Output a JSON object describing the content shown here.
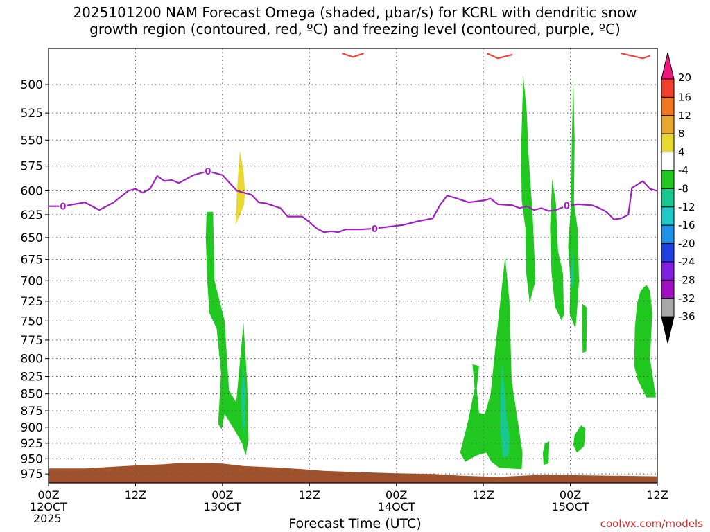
{
  "chart_data": {
    "type": "heatmap",
    "title_lines": [
      "2025101200 NAM Forecast Omega (shaded, μbar/s) for KCRL with dendritic snow",
      "growth region (contoured, red, ºC) and freezing level (contoured, purple, ºC)"
    ],
    "xlabel": "Forecast Time (UTC)",
    "x_ticks": [
      {
        "hour": 0,
        "lines": [
          "00Z",
          "12OCT",
          "2025"
        ]
      },
      {
        "hour": 12,
        "lines": [
          "12Z"
        ]
      },
      {
        "hour": 24,
        "lines": [
          "00Z",
          "13OCT"
        ]
      },
      {
        "hour": 36,
        "lines": [
          "12Z"
        ]
      },
      {
        "hour": 48,
        "lines": [
          "00Z",
          "14OCT"
        ]
      },
      {
        "hour": 60,
        "lines": [
          "12Z"
        ]
      },
      {
        "hour": 72,
        "lines": [
          "00Z",
          "15OCT"
        ]
      },
      {
        "hour": 84,
        "lines": [
          "12Z"
        ]
      }
    ],
    "xlim": [
      0,
      84
    ],
    "y_ticks": [
      500,
      525,
      550,
      575,
      600,
      625,
      650,
      675,
      700,
      725,
      750,
      775,
      800,
      825,
      850,
      875,
      900,
      925,
      950,
      975
    ],
    "ylim_hpa": [
      470,
      990
    ],
    "y_scale": "log-pressure",
    "grid": true,
    "colorbar": {
      "labels": [
        "20",
        "16",
        "12",
        "8",
        "4",
        "-4",
        "-8",
        "-12",
        "-16",
        "-20",
        "-24",
        "-28",
        "-32",
        "-36"
      ],
      "colors": [
        "#f01680",
        "#f04030",
        "#f07820",
        "#e8a830",
        "#e8d830",
        "#ffffff",
        "#20c820",
        "#18c890",
        "#20c8c8",
        "#2090e8",
        "#2040e0",
        "#8020e0",
        "#a010c0",
        "#a8a8a8",
        "#000000"
      ]
    },
    "freezing_level": {
      "label": "0",
      "color": "#a020c0",
      "points": [
        [
          0,
          616
        ],
        [
          2,
          616
        ],
        [
          5,
          612
        ],
        [
          7,
          620
        ],
        [
          9,
          612
        ],
        [
          11,
          600
        ],
        [
          12,
          598
        ],
        [
          13,
          602
        ],
        [
          14,
          598
        ],
        [
          15,
          585
        ],
        [
          16,
          590
        ],
        [
          17,
          589
        ],
        [
          18,
          592
        ],
        [
          20,
          584
        ],
        [
          22,
          580
        ],
        [
          23,
          582
        ],
        [
          24,
          584
        ],
        [
          25,
          592
        ],
        [
          26,
          600
        ],
        [
          27,
          602
        ],
        [
          28,
          604
        ],
        [
          29,
          612
        ],
        [
          30,
          613
        ],
        [
          32,
          618
        ],
        [
          33,
          627
        ],
        [
          35,
          627
        ],
        [
          36,
          633
        ],
        [
          37,
          640
        ],
        [
          38,
          644
        ],
        [
          39,
          643
        ],
        [
          40,
          644
        ],
        [
          41,
          641
        ],
        [
          43,
          641
        ],
        [
          45,
          640
        ],
        [
          47,
          638
        ],
        [
          49,
          636
        ],
        [
          51,
          632
        ],
        [
          53,
          629
        ],
        [
          54,
          615
        ],
        [
          55,
          605
        ],
        [
          56,
          607
        ],
        [
          58,
          612
        ],
        [
          60,
          610
        ],
        [
          61,
          608
        ],
        [
          62,
          614
        ],
        [
          64,
          615
        ],
        [
          65,
          618
        ],
        [
          66,
          616
        ],
        [
          67,
          620
        ],
        [
          68,
          618
        ],
        [
          69,
          621
        ],
        [
          70,
          620
        ],
        [
          71,
          617
        ],
        [
          72,
          615
        ],
        [
          73,
          614
        ],
        [
          75,
          615
        ],
        [
          76,
          618
        ],
        [
          77,
          622
        ],
        [
          78,
          630
        ],
        [
          79,
          629
        ],
        [
          80,
          625
        ],
        [
          80.5,
          597
        ],
        [
          82,
          590
        ],
        [
          83,
          598
        ],
        [
          84,
          600
        ]
      ],
      "contour_labels": [
        [
          2,
          616
        ],
        [
          22,
          580
        ],
        [
          45,
          640
        ],
        [
          71.5,
          615
        ]
      ]
    },
    "dendritic_contour": {
      "color": "#f04040",
      "segments": [
        [
          [
            40.5,
            474
          ],
          [
            42,
            477
          ],
          [
            43.5,
            474
          ]
        ],
        [
          [
            60.5,
            474
          ],
          [
            62,
            478
          ],
          [
            64,
            475
          ]
        ],
        [
          [
            79,
            474
          ],
          [
            80.5,
            476
          ],
          [
            82,
            478
          ],
          [
            83,
            476
          ]
        ]
      ]
    },
    "omega_regions": [
      {
        "value": 8,
        "color": "#e8d830",
        "points": [
          [
            25.8,
            636
          ],
          [
            26.0,
            600
          ],
          [
            26.4,
            560
          ],
          [
            26.9,
            580
          ],
          [
            27.1,
            600
          ],
          [
            27.0,
            614
          ],
          [
            26.5,
            624
          ],
          [
            26.1,
            630
          ]
        ]
      },
      {
        "value": -6,
        "color": "#20c820",
        "points": [
          [
            21.8,
            622
          ],
          [
            22.7,
            622
          ],
          [
            22.9,
            700
          ],
          [
            24.3,
            750
          ],
          [
            24.9,
            845
          ],
          [
            25.9,
            862
          ],
          [
            26.9,
            752
          ],
          [
            27.4,
            832
          ],
          [
            27.6,
            920
          ],
          [
            27.2,
            945
          ],
          [
            26.7,
            925
          ],
          [
            25.7,
            905
          ],
          [
            24.3,
            880
          ],
          [
            23.9,
            903
          ],
          [
            23.4,
            895
          ],
          [
            23.8,
            820
          ],
          [
            23.2,
            760
          ],
          [
            22.2,
            740
          ],
          [
            21.9,
            700
          ],
          [
            21.7,
            650
          ]
        ]
      },
      {
        "value": -10,
        "color": "#18c890",
        "points": [
          [
            26.9,
            810
          ],
          [
            27.2,
            850
          ],
          [
            27.0,
            915
          ],
          [
            26.7,
            890
          ],
          [
            26.6,
            845
          ]
        ]
      },
      {
        "value": -6,
        "color": "#20c820",
        "points": [
          [
            58.5,
            808
          ],
          [
            59.4,
            810
          ],
          [
            59.1,
            842
          ],
          [
            59.4,
            878
          ],
          [
            60.2,
            880
          ],
          [
            61.0,
            850
          ],
          [
            61.6,
            790
          ],
          [
            62.1,
            745
          ],
          [
            63.0,
            672
          ],
          [
            63.6,
            725
          ],
          [
            63.9,
            830
          ],
          [
            65.4,
            940
          ],
          [
            65.3,
            967
          ],
          [
            62.2,
            965
          ],
          [
            61.1,
            955
          ],
          [
            60.4,
            940
          ],
          [
            59.0,
            945
          ],
          [
            57.5,
            955
          ],
          [
            56.8,
            940
          ],
          [
            57.9,
            890
          ],
          [
            58.8,
            842
          ]
        ]
      },
      {
        "value": -10,
        "color": "#18c890",
        "points": [
          [
            62.6,
            805
          ],
          [
            63.2,
            880
          ],
          [
            63.6,
            915
          ],
          [
            63.5,
            945
          ],
          [
            62.7,
            948
          ],
          [
            62.3,
            900
          ],
          [
            62.4,
            845
          ]
        ]
      },
      {
        "value": -6,
        "color": "#20c820",
        "points": [
          [
            65.5,
            492
          ],
          [
            66.0,
            525
          ],
          [
            66.2,
            560
          ],
          [
            66.8,
            625
          ],
          [
            67.2,
            700
          ],
          [
            66.4,
            727
          ],
          [
            65.9,
            690
          ],
          [
            65.8,
            640
          ],
          [
            65.3,
            610
          ],
          [
            65.2,
            560
          ]
        ]
      },
      {
        "value": -6,
        "color": "#20c820",
        "points": [
          [
            69.5,
            588
          ],
          [
            70.0,
            612
          ],
          [
            70.3,
            665
          ],
          [
            71.0,
            692
          ],
          [
            71.1,
            742
          ],
          [
            70.8,
            750
          ],
          [
            69.9,
            732
          ],
          [
            69.4,
            690
          ],
          [
            69.2,
            640
          ]
        ]
      },
      {
        "value": -6,
        "color": "#20c820",
        "points": [
          [
            72.4,
            494
          ],
          [
            72.6,
            550
          ],
          [
            72.5,
            612
          ],
          [
            73.0,
            640
          ],
          [
            73.2,
            700
          ],
          [
            72.9,
            740
          ],
          [
            72.7,
            760
          ],
          [
            71.9,
            740
          ],
          [
            72.0,
            700
          ],
          [
            71.7,
            660
          ],
          [
            72.1,
            615
          ],
          [
            72.2,
            550
          ]
        ]
      },
      {
        "value": -10,
        "color": "#18c890",
        "points": [
          [
            72.3,
            660
          ],
          [
            72.5,
            680
          ],
          [
            72.4,
            710
          ],
          [
            72.1,
            700
          ]
        ]
      },
      {
        "value": -6,
        "color": "#20c820",
        "points": [
          [
            73.6,
            728
          ],
          [
            74.3,
            733
          ],
          [
            74.2,
            790
          ],
          [
            73.7,
            792
          ]
        ]
      },
      {
        "value": -6,
        "color": "#20c820",
        "points": [
          [
            81.2,
            728
          ],
          [
            81.7,
            712
          ],
          [
            82.5,
            705
          ],
          [
            83.0,
            712
          ],
          [
            83.3,
            740
          ],
          [
            83.0,
            800
          ],
          [
            83.8,
            855
          ],
          [
            82.5,
            855
          ],
          [
            81.3,
            830
          ],
          [
            80.8,
            810
          ],
          [
            80.9,
            760
          ]
        ]
      },
      {
        "value": -6,
        "color": "#20c820",
        "points": [
          [
            68.5,
            925
          ],
          [
            69.1,
            922
          ],
          [
            69.0,
            958
          ],
          [
            68.3,
            960
          ],
          [
            68.2,
            940
          ]
        ]
      },
      {
        "value": -6,
        "color": "#20c820",
        "points": [
          [
            72.6,
            912
          ],
          [
            73.5,
            897
          ],
          [
            74.1,
            902
          ],
          [
            73.9,
            930
          ],
          [
            72.9,
            940
          ],
          [
            72.4,
            928
          ]
        ]
      }
    ],
    "surface_pressure": {
      "color": "#a0522d",
      "points": [
        [
          0,
          966
        ],
        [
          5,
          966
        ],
        [
          9,
          963
        ],
        [
          12,
          961
        ],
        [
          16,
          959
        ],
        [
          18,
          957
        ],
        [
          22,
          957
        ],
        [
          24,
          958
        ],
        [
          27,
          962
        ],
        [
          31,
          964
        ],
        [
          35,
          967
        ],
        [
          38,
          970
        ],
        [
          43,
          972
        ],
        [
          48,
          974
        ],
        [
          53,
          975
        ],
        [
          57,
          978
        ],
        [
          62,
          980
        ],
        [
          67,
          977
        ],
        [
          72,
          977
        ],
        [
          84,
          979
        ]
      ]
    }
  },
  "credit": "coolwx.com/models"
}
